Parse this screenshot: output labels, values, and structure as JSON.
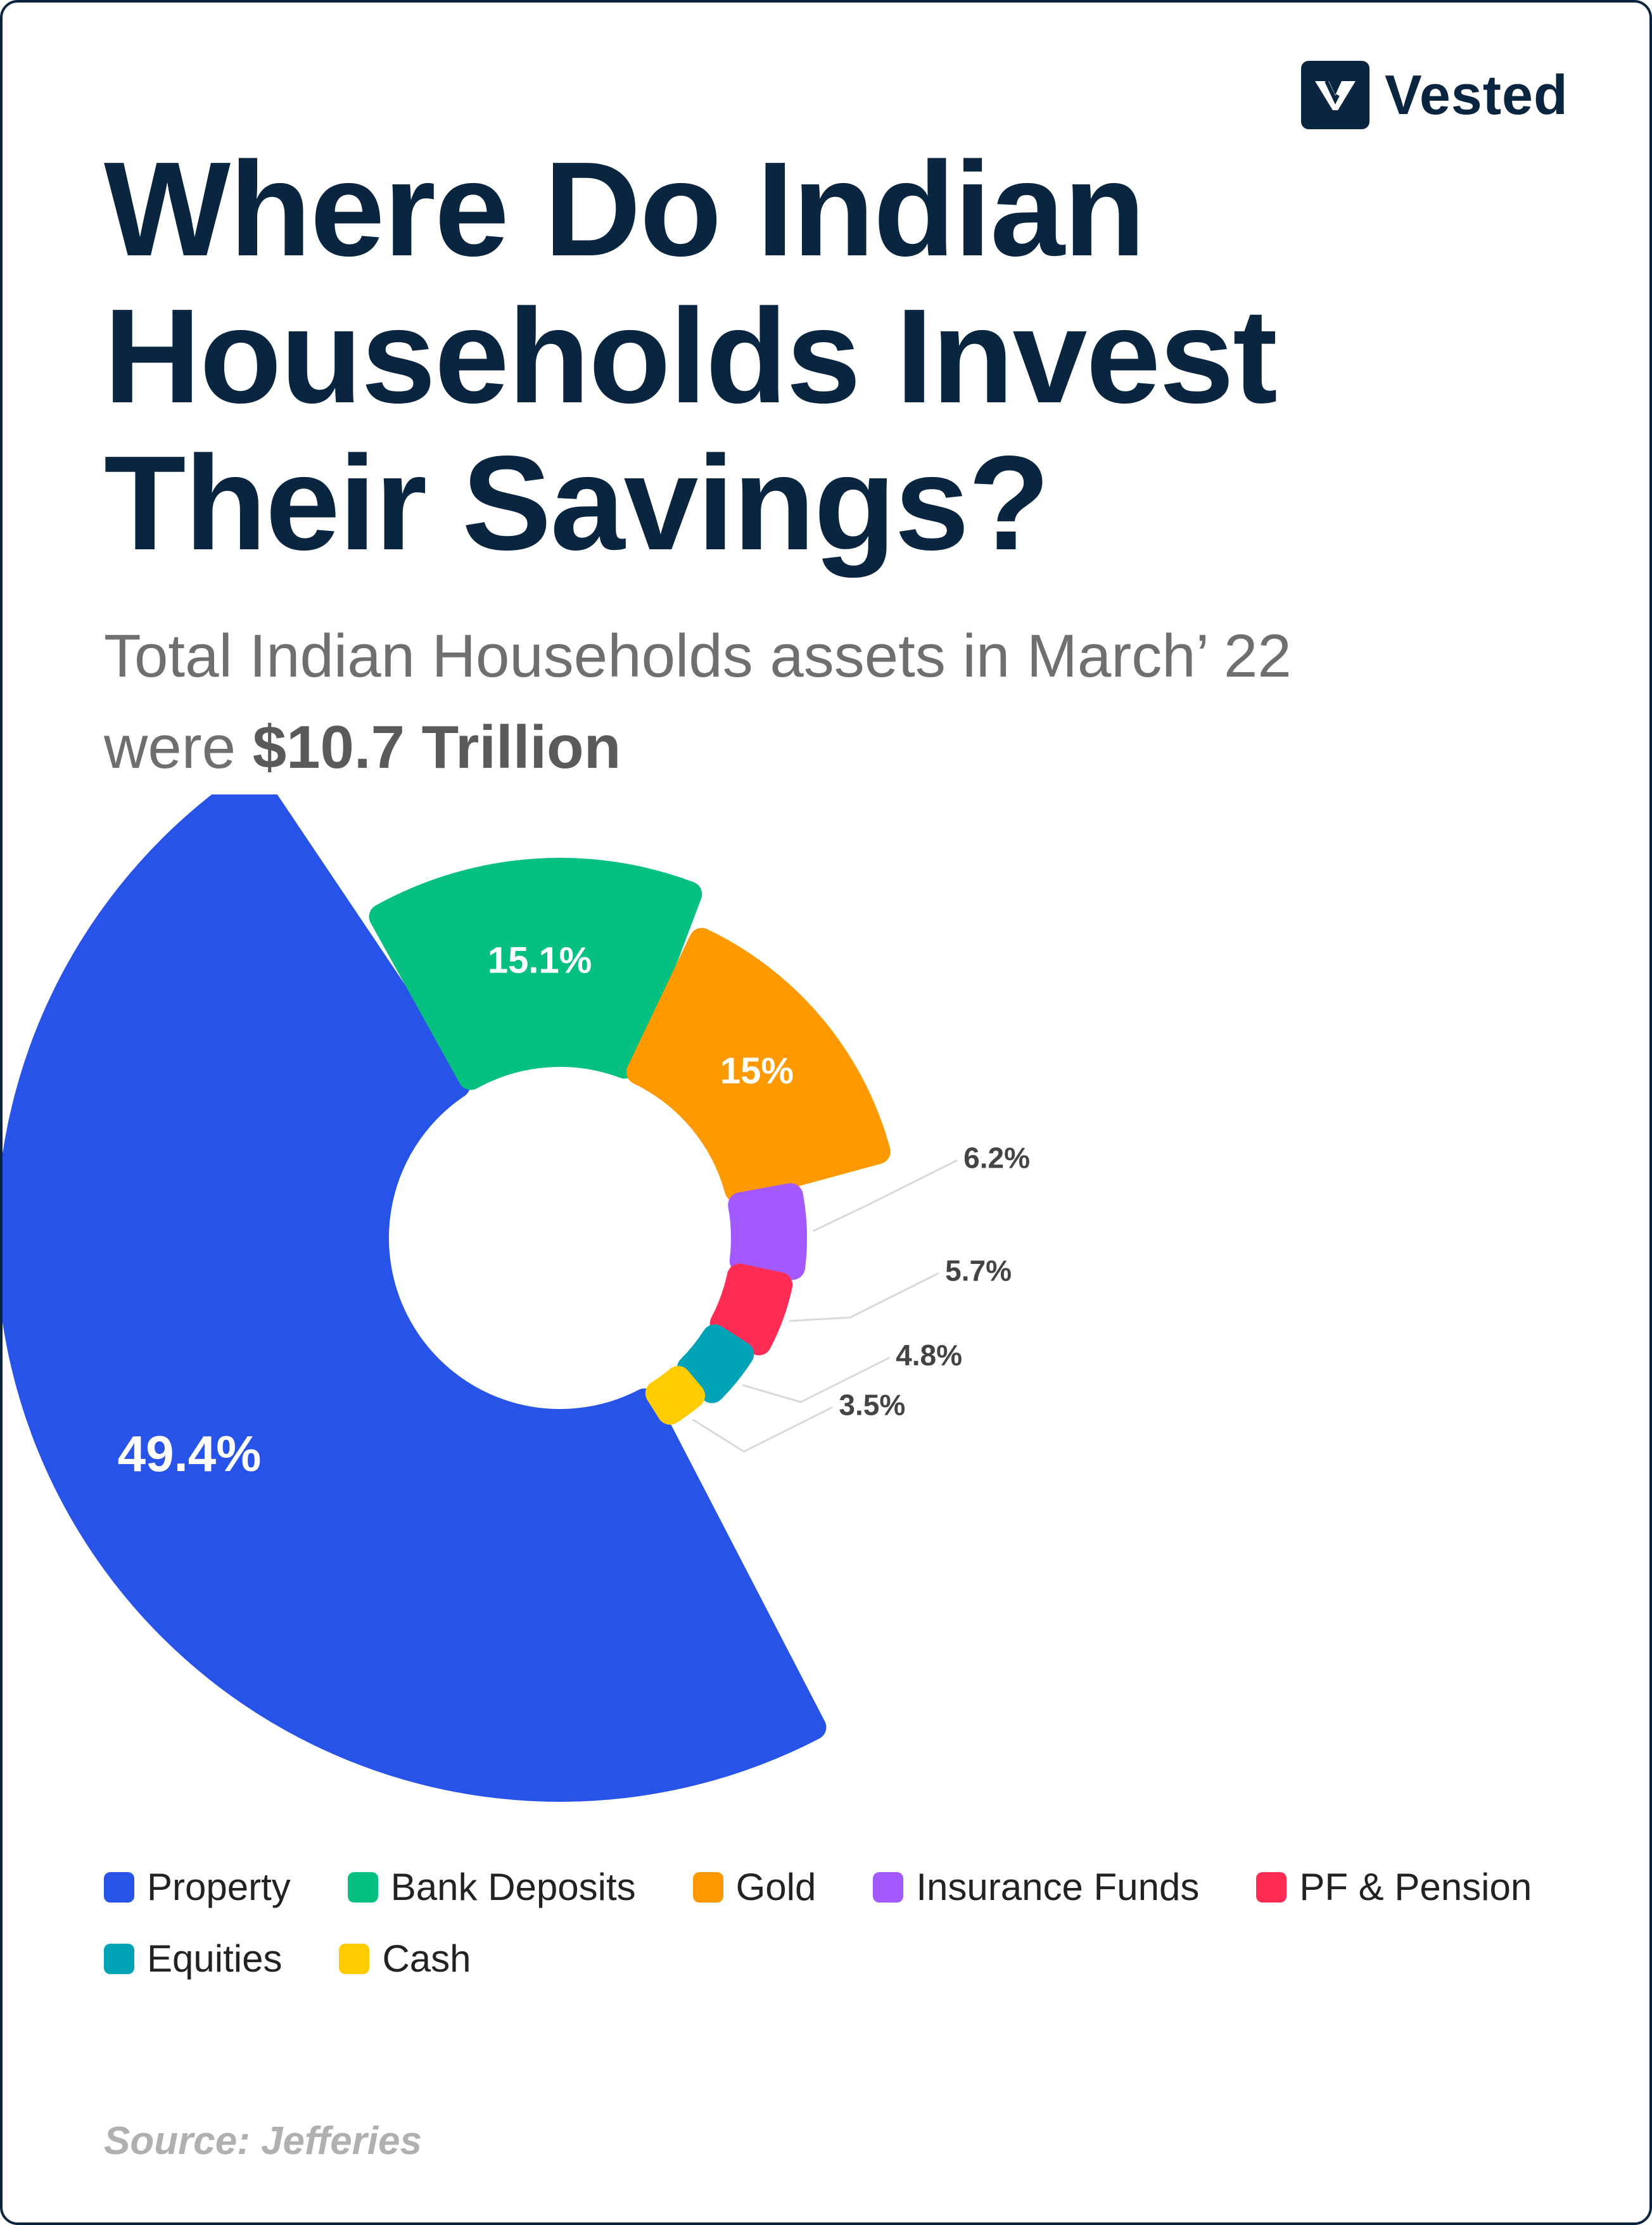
{
  "brand": {
    "name": "Vested",
    "logo_icon": "v-logo-icon"
  },
  "header": {
    "title_lines": [
      "Where Do Indian",
      "Households Invest",
      "Their Savings?"
    ],
    "subtitle_line1": "Total Indian Households assets in March’ 22",
    "subtitle_prefix": "were ",
    "subtitle_highlight": "$10.7 Trillion"
  },
  "chart_data": {
    "type": "pie",
    "title": "Where Do Indian Households Invest Their Savings?",
    "unit": "%",
    "slices": [
      {
        "name": "Property",
        "value": 49.4,
        "label": "49.4%",
        "color": "#2853e8"
      },
      {
        "name": "Bank Deposits",
        "value": 15.1,
        "label": "15.1%",
        "color": "#06c07f"
      },
      {
        "name": "Gold",
        "value": 15,
        "label": "15%",
        "color": "#ff9900"
      },
      {
        "name": "Insurance Funds",
        "value": 6.2,
        "label": "6.2%",
        "color": "#a259ff"
      },
      {
        "name": "PF & Pension",
        "value": 5.7,
        "label": "5.7%",
        "color": "#ff2d55"
      },
      {
        "name": "Equities",
        "value": 4.8,
        "label": "4.8%",
        "color": "#00a3b8"
      },
      {
        "name": "Cash",
        "value": 3.5,
        "label": "3.5%",
        "color": "#ffcc00"
      }
    ],
    "legend_position": "bottom"
  },
  "source": "Source: Jefferies"
}
